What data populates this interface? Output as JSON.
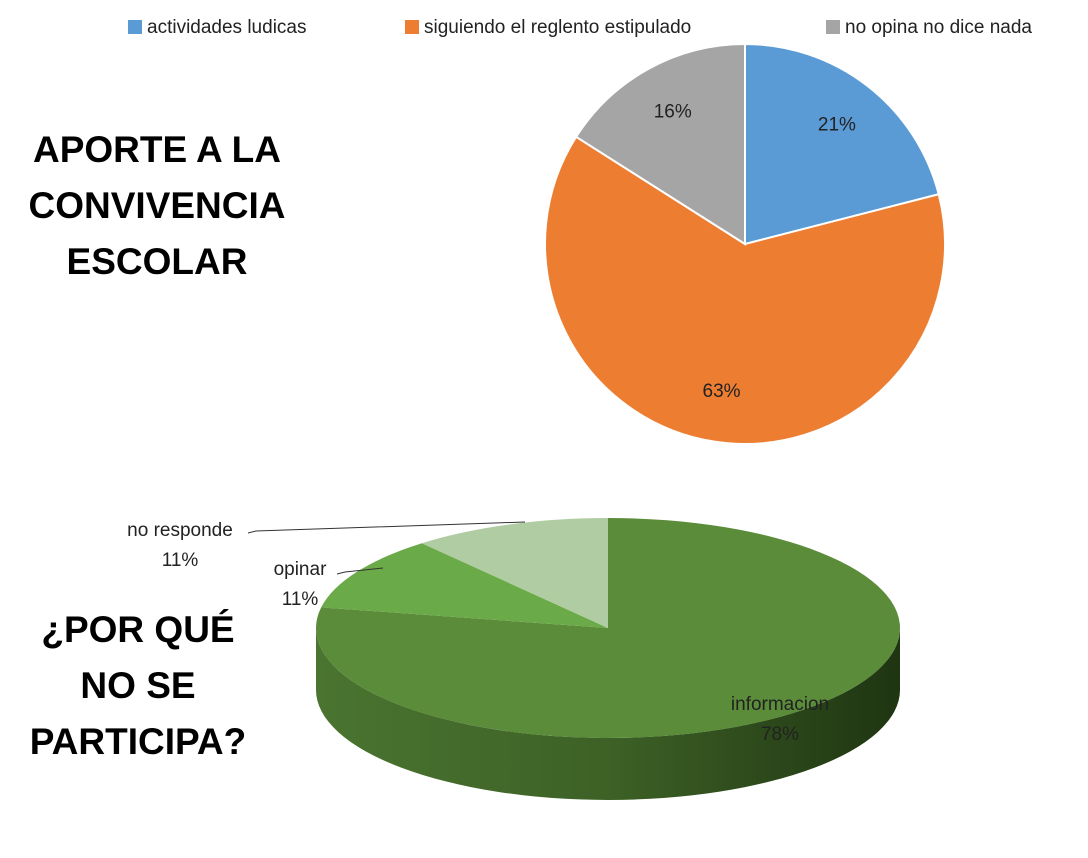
{
  "chart_data": [
    {
      "type": "pie",
      "title": "APORTE A LA CONVIVENCIA ESCOLAR",
      "categories": [
        "actividades ludicas",
        "siguiendo el reglento estipulado",
        "no opina no dice nada"
      ],
      "values": [
        21,
        63,
        16
      ],
      "value_labels": [
        "21%",
        "63%",
        "16%"
      ],
      "colors": [
        "#5b9bd5",
        "#ed7d31",
        "#a5a5a5"
      ],
      "legend": "top"
    },
    {
      "type": "pie",
      "three_d": true,
      "title": "¿POR QUÉ NO SE PARTICIPA?",
      "categories": [
        "informacion",
        "opinar",
        "no responde"
      ],
      "values": [
        78,
        11,
        11
      ],
      "value_labels": [
        "78%",
        "11%",
        "11%"
      ],
      "colors": [
        "#5b8c3a",
        "#6aaa48",
        "#b0cca2"
      ]
    }
  ]
}
